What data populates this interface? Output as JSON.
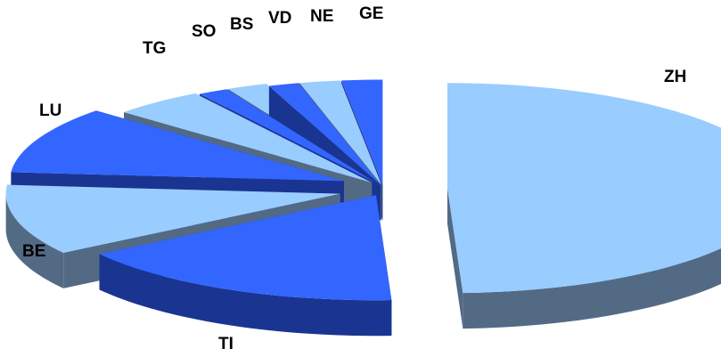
{
  "chart_data": {
    "type": "pie",
    "style": "3d-exploded",
    "title": "",
    "legend": "none",
    "slices": [
      {
        "label": "ZH",
        "value": 50.0,
        "color": "light"
      },
      {
        "label": "TI",
        "value": 16.5,
        "color": "dark"
      },
      {
        "label": "BE",
        "value": 11.0,
        "color": "light"
      },
      {
        "label": "LU",
        "value": 10.5,
        "color": "dark"
      },
      {
        "label": "TG",
        "value": 4.5,
        "color": "light"
      },
      {
        "label": "SO",
        "value": 1.5,
        "color": "dark"
      },
      {
        "label": "BS",
        "value": 2.0,
        "color": "light"
      },
      {
        "label": "VD",
        "value": 1.5,
        "color": "dark"
      },
      {
        "label": "NE",
        "value": 2.0,
        "color": "light"
      },
      {
        "label": "GE",
        "value": 2.0,
        "color": "dark"
      }
    ]
  },
  "colors": {
    "light_top": "#99CCFF",
    "light_side": "#536A85",
    "dark_top": "#3366FF",
    "dark_side": "#1A3491"
  }
}
